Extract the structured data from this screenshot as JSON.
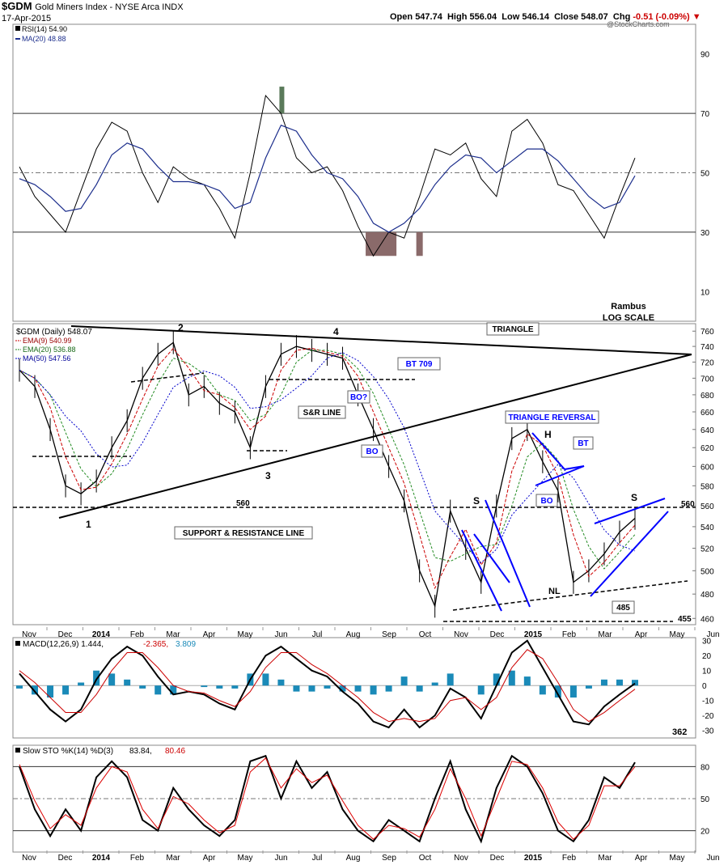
{
  "header": {
    "symbol": "$GDM",
    "name": "Gold Miners Index - NYSE Arca INDX",
    "date": "17-Apr-2015",
    "open_label": "Open",
    "open": "547.74",
    "high_label": "High",
    "high": "556.04",
    "low_label": "Low",
    "low": "546.14",
    "close_label": "Close",
    "close": "548.07",
    "chg_label": "Chg",
    "chg": "-0.51 (-0.09%)",
    "logo": "@StockCharts.com"
  },
  "colors": {
    "price": "#000000",
    "ema9": "#cc0000",
    "ema20": "#228b22",
    "ma50": "#0000cc",
    "annot": "#0000ff",
    "rsi_ma": "#1c2e8c",
    "hist": "#1a8ab8",
    "overbought_fill": "#5a7a5a",
    "oversold_fill": "#8a6a6a",
    "stoch_d": "#dd0000"
  },
  "chart_data": [
    {
      "type": "line",
      "panel": "RSI",
      "legend": [
        "RSI(14) 54.90",
        "MA(20) 48.88"
      ],
      "yticks": [
        10,
        30,
        50,
        70,
        90
      ],
      "ylim": [
        0,
        100
      ],
      "series": [
        {
          "name": "RSI(14)",
          "x": [
            0,
            2,
            4,
            6,
            8,
            10,
            12,
            14,
            16,
            18,
            20,
            22,
            24,
            26,
            28,
            30,
            32,
            34,
            36,
            38,
            40,
            42,
            44,
            46,
            48,
            50,
            52,
            54,
            56,
            58,
            60,
            62,
            64,
            66,
            68,
            70,
            72,
            74,
            76,
            78,
            80
          ],
          "values": [
            52,
            42,
            36,
            30,
            44,
            58,
            67,
            64,
            50,
            40,
            52,
            48,
            46,
            38,
            28,
            50,
            76,
            70,
            55,
            50,
            52,
            44,
            32,
            22,
            30,
            28,
            42,
            58,
            56,
            60,
            48,
            42,
            64,
            68,
            60,
            46,
            44,
            36,
            28,
            42,
            55
          ]
        },
        {
          "name": "MA(20)",
          "x": [
            0,
            2,
            4,
            6,
            8,
            10,
            12,
            14,
            16,
            18,
            20,
            22,
            24,
            26,
            28,
            30,
            32,
            34,
            36,
            38,
            40,
            42,
            44,
            46,
            48,
            50,
            52,
            54,
            56,
            58,
            60,
            62,
            64,
            66,
            68,
            70,
            72,
            74,
            76,
            78,
            80
          ],
          "values": [
            48,
            46,
            42,
            37,
            38,
            46,
            56,
            60,
            58,
            52,
            47,
            47,
            46,
            44,
            38,
            40,
            55,
            66,
            64,
            56,
            50,
            48,
            42,
            33,
            30,
            33,
            38,
            46,
            52,
            56,
            55,
            50,
            54,
            58,
            58,
            54,
            48,
            42,
            38,
            40,
            49
          ]
        }
      ]
    },
    {
      "type": "line",
      "panel": "Price",
      "title": "$GDM (Daily) 548.07",
      "scale": "log",
      "legend": [
        "EMA(9) 540.99",
        "EMA(20) 536.88",
        "MA(50) 547.56"
      ],
      "yticks": [
        460,
        480,
        500,
        520,
        540,
        560,
        580,
        600,
        620,
        640,
        660,
        680,
        700,
        720,
        740,
        760
      ],
      "ylim": [
        455,
        770
      ],
      "xlabels": [
        "Nov",
        "Dec",
        "2014",
        "Feb",
        "Mar",
        "Apr",
        "May",
        "Jun",
        "Jul",
        "Aug",
        "Sep",
        "Oct",
        "Nov",
        "Dec",
        "2015",
        "Feb",
        "Mar",
        "Apr",
        "May",
        "Jun"
      ],
      "series": [
        {
          "name": "$GDM",
          "x": [
            0,
            2,
            4,
            6,
            8,
            10,
            12,
            14,
            16,
            18,
            20,
            22,
            24,
            26,
            28,
            30,
            32,
            34,
            36,
            38,
            40,
            42,
            44,
            46,
            48,
            50,
            52,
            54,
            56,
            58,
            60,
            62,
            64,
            66,
            68,
            70,
            72,
            74,
            76,
            78,
            80
          ],
          "values": [
            710,
            690,
            640,
            580,
            572,
            585,
            620,
            650,
            700,
            730,
            745,
            680,
            690,
            670,
            660,
            620,
            690,
            730,
            740,
            735,
            730,
            725,
            680,
            640,
            600,
            565,
            500,
            470,
            555,
            520,
            490,
            560,
            630,
            640,
            605,
            575,
            490,
            500,
            515,
            535,
            548
          ]
        }
      ],
      "annotations": [
        "TRIANGLE",
        "BT 709",
        "TRIANGLE REVERSAL",
        "BT",
        "BO",
        "BO?",
        "BO",
        "S&R LINE",
        "SUPPORT & RESISTANCE LINE",
        "Rambus",
        "LOG SCALE",
        "NL",
        "485",
        "455",
        "560",
        "560",
        "1",
        "2",
        "3",
        "4",
        "S",
        "H",
        "S"
      ]
    },
    {
      "type": "line",
      "panel": "MACD",
      "legend": [
        "MACD(12,26,9) 1.444,",
        "-2.365,",
        "3.809"
      ],
      "yticks": [
        30,
        20,
        10,
        0,
        -10,
        -20,
        -30
      ],
      "ylim": [
        -35,
        32
      ],
      "value_label": "362",
      "series": [
        {
          "name": "MACD",
          "x": [
            0,
            2,
            4,
            6,
            8,
            10,
            12,
            14,
            16,
            18,
            20,
            22,
            24,
            26,
            28,
            30,
            32,
            34,
            36,
            38,
            40,
            42,
            44,
            46,
            48,
            50,
            52,
            54,
            56,
            58,
            60,
            62,
            64,
            66,
            68,
            70,
            72,
            74,
            76,
            78,
            80
          ],
          "values": [
            8,
            -4,
            -16,
            -24,
            -16,
            4,
            18,
            26,
            20,
            6,
            -6,
            -4,
            -6,
            -12,
            -16,
            4,
            20,
            26,
            18,
            10,
            6,
            -4,
            -12,
            -24,
            -28,
            -16,
            -28,
            -20,
            -2,
            -8,
            -22,
            0,
            22,
            30,
            12,
            -6,
            -24,
            -26,
            -14,
            -6,
            1.4
          ]
        },
        {
          "name": "Signal",
          "x": [
            0,
            2,
            4,
            6,
            8,
            10,
            12,
            14,
            16,
            18,
            20,
            22,
            24,
            26,
            28,
            30,
            32,
            34,
            36,
            38,
            40,
            42,
            44,
            46,
            48,
            50,
            52,
            54,
            56,
            58,
            60,
            62,
            64,
            66,
            68,
            70,
            72,
            74,
            76,
            78,
            80
          ],
          "values": [
            10,
            2,
            -8,
            -18,
            -18,
            -6,
            10,
            22,
            22,
            12,
            0,
            -4,
            -5,
            -10,
            -14,
            -4,
            12,
            22,
            22,
            14,
            8,
            0,
            -8,
            -18,
            -24,
            -22,
            -24,
            -22,
            -10,
            -8,
            -16,
            -8,
            12,
            24,
            18,
            2,
            -16,
            -24,
            -18,
            -10,
            -2.4
          ]
        },
        {
          "name": "Histogram",
          "x": [
            0,
            2,
            4,
            6,
            8,
            10,
            12,
            14,
            16,
            18,
            20,
            22,
            24,
            26,
            28,
            30,
            32,
            34,
            36,
            38,
            40,
            42,
            44,
            46,
            48,
            50,
            52,
            54,
            56,
            58,
            60,
            62,
            64,
            66,
            68,
            70,
            72,
            74,
            76,
            78,
            80
          ],
          "values": [
            -2,
            -6,
            -8,
            -6,
            2,
            10,
            8,
            4,
            -2,
            -6,
            -6,
            0,
            -1,
            -2,
            -2,
            8,
            8,
            4,
            -4,
            -4,
            -2,
            -4,
            -4,
            -6,
            -4,
            6,
            -4,
            2,
            8,
            0,
            -6,
            8,
            10,
            6,
            -6,
            -8,
            -8,
            -2,
            4,
            4,
            3.8
          ]
        }
      ]
    },
    {
      "type": "line",
      "panel": "Slow STO",
      "legend": [
        "Slow STO %K(14) %D(3)",
        "83.84,",
        "80.46"
      ],
      "yticks": [
        20,
        50,
        80
      ],
      "ylim": [
        0,
        100
      ],
      "series": [
        {
          "name": "%K",
          "x": [
            0,
            2,
            4,
            6,
            8,
            10,
            12,
            14,
            16,
            18,
            20,
            22,
            24,
            26,
            28,
            30,
            32,
            34,
            36,
            38,
            40,
            42,
            44,
            46,
            48,
            50,
            52,
            54,
            56,
            58,
            60,
            62,
            64,
            66,
            68,
            70,
            72,
            74,
            76,
            78,
            80
          ],
          "values": [
            80,
            40,
            15,
            40,
            20,
            70,
            85,
            70,
            30,
            20,
            60,
            40,
            25,
            15,
            30,
            85,
            90,
            50,
            85,
            60,
            75,
            40,
            20,
            10,
            30,
            20,
            10,
            50,
            85,
            40,
            10,
            60,
            90,
            80,
            55,
            20,
            10,
            30,
            70,
            60,
            84
          ]
        },
        {
          "name": "%D",
          "x": [
            0,
            2,
            4,
            6,
            8,
            10,
            12,
            14,
            16,
            18,
            20,
            22,
            24,
            26,
            28,
            30,
            32,
            34,
            36,
            38,
            40,
            42,
            44,
            46,
            48,
            50,
            52,
            54,
            56,
            58,
            60,
            62,
            64,
            66,
            68,
            70,
            72,
            74,
            76,
            78,
            80
          ],
          "values": [
            82,
            48,
            22,
            35,
            25,
            60,
            80,
            75,
            40,
            22,
            52,
            45,
            30,
            18,
            25,
            75,
            88,
            60,
            78,
            65,
            72,
            48,
            25,
            12,
            25,
            22,
            14,
            40,
            78,
            50,
            15,
            50,
            85,
            82,
            60,
            28,
            12,
            25,
            62,
            62,
            80
          ]
        }
      ]
    }
  ]
}
